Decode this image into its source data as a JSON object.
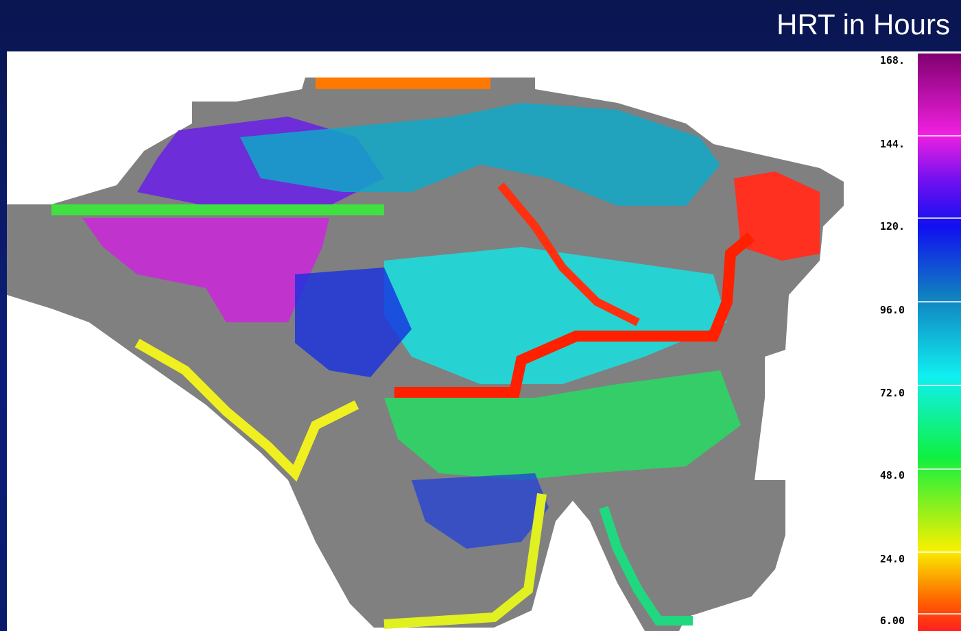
{
  "header": {
    "title": "HRT in Hours"
  },
  "legend": {
    "labels": [
      "168.",
      "144.",
      "120.",
      "96.0",
      "72.0",
      "48.0",
      "24.0",
      "6.00"
    ]
  }
}
